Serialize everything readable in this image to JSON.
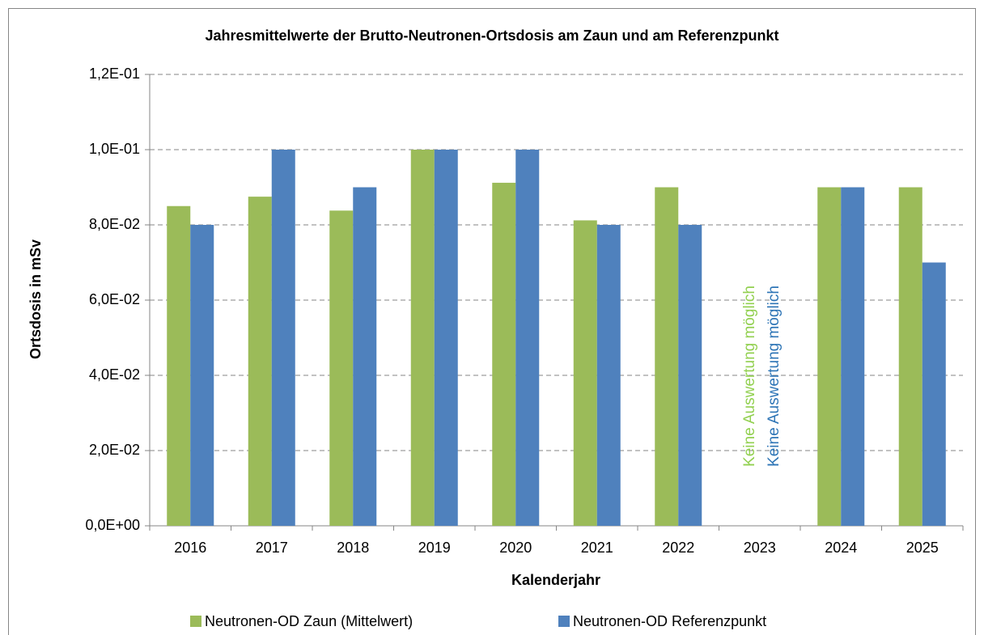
{
  "chart_data": {
    "type": "bar",
    "title": "Jahresmittelwerte der Brutto-Neutronen-Ortsdosis am Zaun und am Referenzpunkt",
    "x_label": "Kalenderjahr",
    "y_label": "Ortsdosis in mSv",
    "categories": [
      "2016",
      "2017",
      "2018",
      "2019",
      "2020",
      "2021",
      "2022",
      "2023",
      "2024",
      "2025"
    ],
    "series": [
      {
        "name": "Neutronen-OD Zaun (Mittelwert)",
        "color": "#9bbb59",
        "values": [
          0.085,
          0.0875,
          0.0838,
          0.1,
          0.0912,
          0.0812,
          0.09,
          null,
          0.09,
          0.09
        ]
      },
      {
        "name": "Neutronen-OD Referenzpunkt",
        "color": "#4f81bd",
        "values": [
          0.08,
          0.1,
          0.09,
          0.1,
          0.1,
          0.08,
          0.08,
          null,
          0.09,
          0.07
        ]
      }
    ],
    "annotations": [
      {
        "text": "Keine Auswertung möglich",
        "color": "#92d050"
      },
      {
        "text": "Keine Auswertung möglich",
        "color": "#2e75b6"
      }
    ],
    "ylim": [
      0,
      0.12
    ],
    "yticks": [
      {
        "value": 0,
        "label": "0,0E+00"
      },
      {
        "value": 0.02,
        "label": "2,0E-02"
      },
      {
        "value": 0.04,
        "label": "4,0E-02"
      },
      {
        "value": 0.06,
        "label": "6,0E-02"
      },
      {
        "value": 0.08,
        "label": "8,0E-02"
      },
      {
        "value": 0.1,
        "label": "1,0E-01"
      },
      {
        "value": 0.12,
        "label": "1,2E-01"
      }
    ],
    "grid": true,
    "legend": "bottom"
  }
}
